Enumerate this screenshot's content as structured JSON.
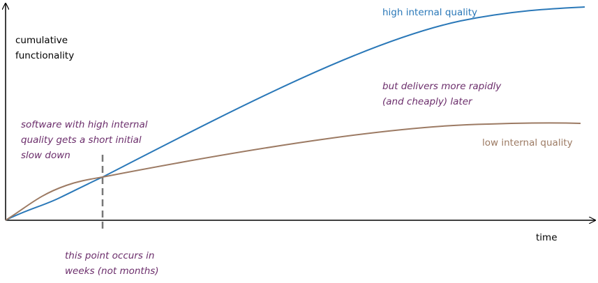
{
  "axes": {
    "y_label": [
      "cumulative",
      "functionality"
    ],
    "x_label": "time"
  },
  "curves": {
    "high": "high internal quality",
    "low": "low internal quality"
  },
  "annotations": {
    "slowdown": [
      "software with high internal",
      "quality gets a short initial",
      "slow down"
    ],
    "later": [
      "but delivers more rapidly",
      "(and cheaply) later"
    ],
    "point": [
      "this point occurs in",
      "weeks (not months)"
    ]
  }
}
